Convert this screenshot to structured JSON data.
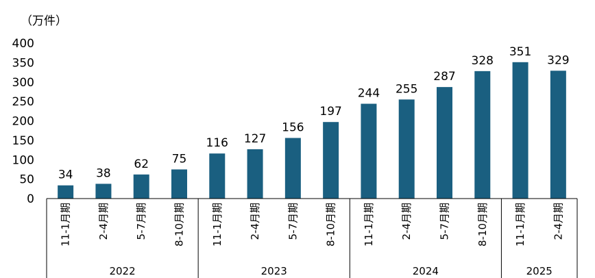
{
  "chart_data": {
    "type": "bar",
    "unit_label": "（万件）",
    "ylim": [
      0,
      400
    ],
    "yticks": [
      0,
      50,
      100,
      150,
      200,
      250,
      300,
      350,
      400
    ],
    "grid": false,
    "bar_color": "#1a5f80",
    "categories": [
      "11-1月期",
      "2-4月期",
      "5-7月期",
      "8-10月期",
      "11-1月期",
      "2-4月期",
      "5-7月期",
      "8-10月期",
      "11-1月期",
      "2-4月期",
      "5-7月期",
      "8-10月期",
      "11-1月期",
      "2-4月期"
    ],
    "values": [
      34,
      38,
      62,
      75,
      116,
      127,
      156,
      197,
      244,
      255,
      287,
      328,
      351,
      329
    ],
    "groups": [
      {
        "label": "2022",
        "count": 4
      },
      {
        "label": "2023",
        "count": 4
      },
      {
        "label": "2024",
        "count": 4
      },
      {
        "label": "2025",
        "count": 2
      }
    ]
  }
}
